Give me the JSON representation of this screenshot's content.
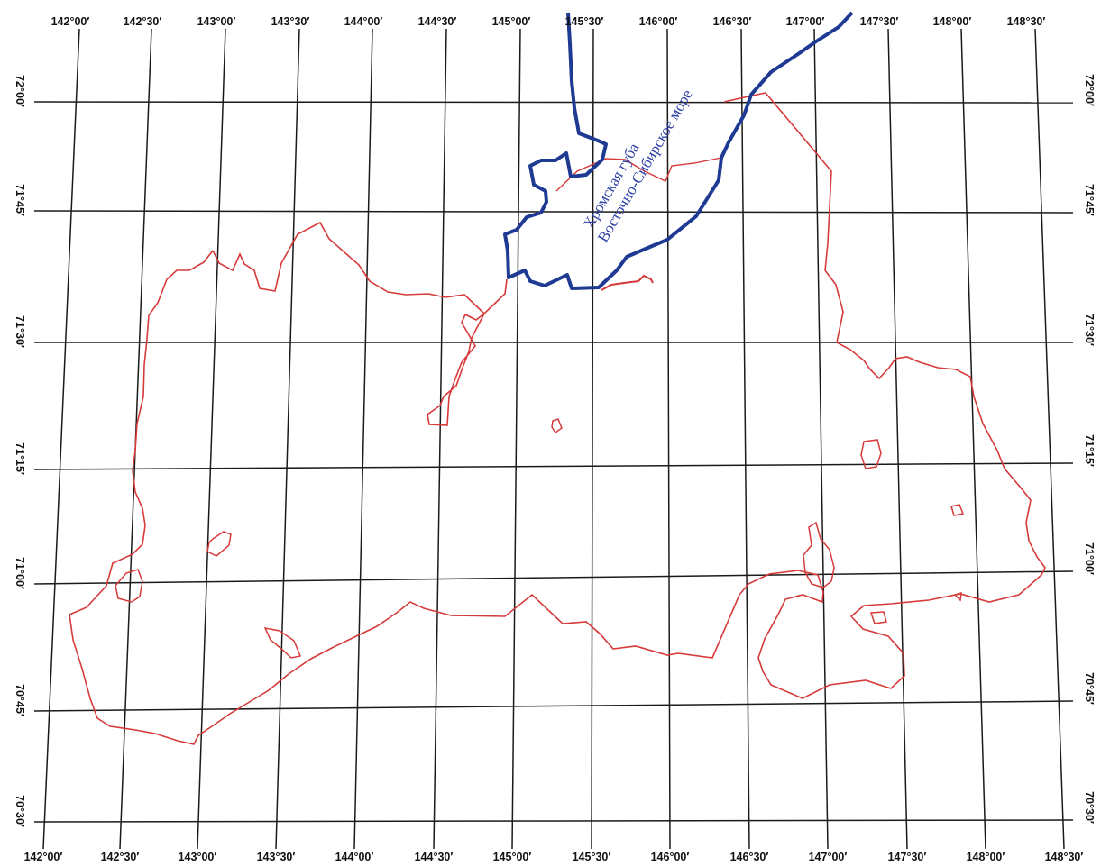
{
  "map": {
    "colors": {
      "grid": "#1a1a1a",
      "region_boundary": "#d63a3a",
      "coastline": "#1f3a93",
      "label": "#2d3fa6"
    },
    "longitude_labels_top": [
      "142°00′",
      "142°30′",
      "143°00′",
      "143°30′",
      "144°00′",
      "144°30′",
      "145°00′",
      "145°30′",
      "146°00′",
      "146°30′",
      "147°00′",
      "147°30′",
      "148°00′",
      "148°30′"
    ],
    "longitude_labels_bottom": [
      "142°00′",
      "142°30′",
      "143°00′",
      "143°30′",
      "144°00′",
      "144°30′",
      "145°00′",
      "145°30′",
      "146°00′",
      "146°30′",
      "147°00′",
      "147°30′",
      "148°00′",
      "148°30′"
    ],
    "latitude_labels_left": [
      "72°00′",
      "71°45′",
      "71°30′",
      "71°15′",
      "71°00′",
      "70°45′",
      "70°30′"
    ],
    "latitude_labels_right": [
      "72°00′",
      "71°45′",
      "71°30′",
      "71°15′",
      "71°00′",
      "70°45′",
      "70°30′"
    ],
    "water_labels": {
      "bay": "Хромская губа",
      "sea": "Восточно-Сибирское море"
    }
  }
}
